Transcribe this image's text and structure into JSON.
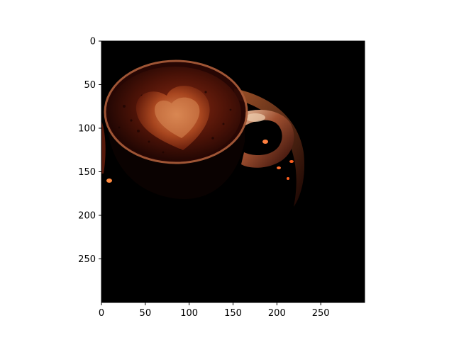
{
  "figure": {
    "background": "#ffffff",
    "frame_color": "#000000"
  },
  "image": {
    "subject": "latte-cup-dark-photo",
    "colors": {
      "background": "#000000",
      "crema_dark": "#3a0c05",
      "crema_mid": "#7a2410",
      "heart_light": "#c9683a",
      "rim_highlight": "#b86a45",
      "handle_highlight": "#e0b090"
    }
  },
  "axes": {
    "x": {
      "range": [
        0,
        300
      ],
      "ticks": [
        0,
        50,
        100,
        150,
        200,
        250
      ],
      "labels": [
        "0",
        "50",
        "100",
        "150",
        "200",
        "250"
      ]
    },
    "y": {
      "range": [
        0,
        300
      ],
      "ticks": [
        0,
        50,
        100,
        150,
        200,
        250
      ],
      "labels": [
        "0",
        "50",
        "100",
        "150",
        "200",
        "250"
      ]
    }
  }
}
